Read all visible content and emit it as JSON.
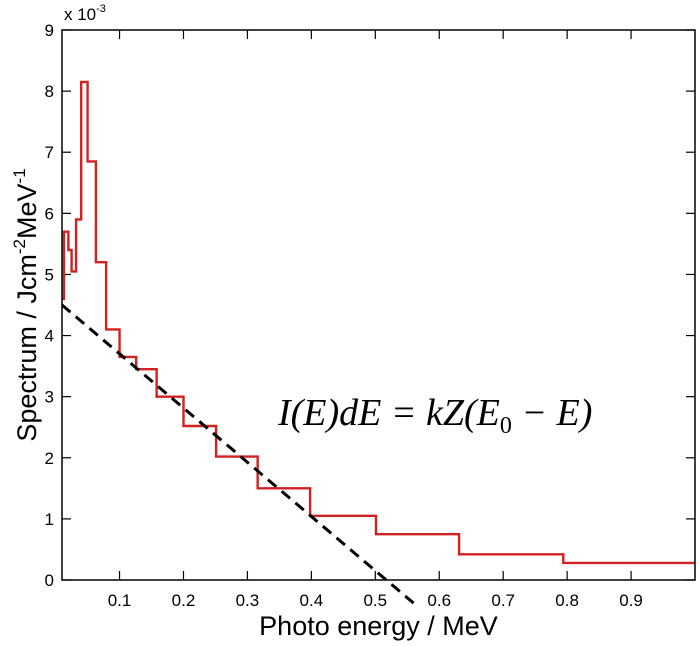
{
  "chart_data": {
    "type": "line",
    "title": "",
    "xlabel": "Photo energy / MeV",
    "ylabel": {
      "parts": [
        "Spectrum / Jcm",
        "-2",
        "MeV",
        "-1"
      ]
    },
    "y_exponent": {
      "base": "x 10",
      "power": "-3"
    },
    "xlim": [
      0.01,
      1.0
    ],
    "ylim": [
      0,
      9
    ],
    "x_ticks": [
      0.1,
      0.2,
      0.3,
      0.4,
      0.5,
      0.6,
      0.7,
      0.8,
      0.9
    ],
    "x_tick_labels": [
      "0.1",
      "0.2",
      "0.3",
      "0.4",
      "0.5",
      "0.6",
      "0.7",
      "0.8",
      "0.9"
    ],
    "y_ticks": [
      0,
      1,
      2,
      3,
      4,
      5,
      6,
      7,
      8,
      9
    ],
    "y_tick_labels": [
      "0",
      "1",
      "2",
      "3",
      "4",
      "5",
      "6",
      "7",
      "8",
      "9"
    ],
    "grid": false,
    "series": [
      {
        "style": "step",
        "color": "#d42020",
        "bins": [
          {
            "x0": 0.01,
            "x1": 0.013,
            "y": 4.6
          },
          {
            "x0": 0.013,
            "x1": 0.02,
            "y": 5.7
          },
          {
            "x0": 0.02,
            "x1": 0.025,
            "y": 5.4
          },
          {
            "x0": 0.025,
            "x1": 0.032,
            "y": 5.05
          },
          {
            "x0": 0.032,
            "x1": 0.04,
            "y": 5.9
          },
          {
            "x0": 0.04,
            "x1": 0.05,
            "y": 8.15
          },
          {
            "x0": 0.05,
            "x1": 0.063,
            "y": 6.85
          },
          {
            "x0": 0.063,
            "x1": 0.079,
            "y": 5.2
          },
          {
            "x0": 0.079,
            "x1": 0.1,
            "y": 4.1
          },
          {
            "x0": 0.1,
            "x1": 0.126,
            "y": 3.65
          },
          {
            "x0": 0.126,
            "x1": 0.158,
            "y": 3.45
          },
          {
            "x0": 0.158,
            "x1": 0.2,
            "y": 3.0
          },
          {
            "x0": 0.2,
            "x1": 0.251,
            "y": 2.52
          },
          {
            "x0": 0.251,
            "x1": 0.316,
            "y": 2.02
          },
          {
            "x0": 0.316,
            "x1": 0.398,
            "y": 1.5
          },
          {
            "x0": 0.398,
            "x1": 0.501,
            "y": 1.05
          },
          {
            "x0": 0.501,
            "x1": 0.631,
            "y": 0.75
          },
          {
            "x0": 0.631,
            "x1": 0.794,
            "y": 0.42
          },
          {
            "x0": 0.794,
            "x1": 1.0,
            "y": 0.28
          }
        ]
      },
      {
        "style": "dashed-line",
        "color": "#000000",
        "points": [
          {
            "x": 0.01,
            "y": 4.5
          },
          {
            "x": 0.56,
            "y": -0.38
          }
        ]
      }
    ],
    "annotation": {
      "text": "I(E)dE = kZ(E0 − E)",
      "parts": [
        "I(E)dE = kZ(E",
        "0",
        " − E)"
      ]
    }
  }
}
